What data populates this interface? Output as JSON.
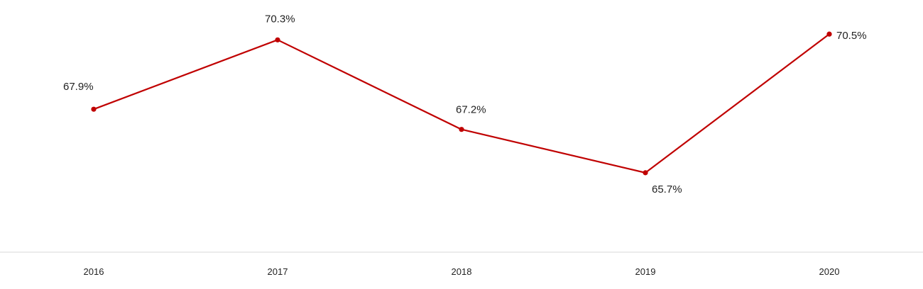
{
  "chart_data": {
    "type": "line",
    "title": "",
    "xlabel": "",
    "ylabel": "",
    "categories": [
      "2016",
      "2017",
      "2018",
      "2019",
      "2020"
    ],
    "series": [
      {
        "values": [
          67.9,
          70.3,
          67.2,
          65.7,
          70.5
        ],
        "labels": [
          "67.9%",
          "70.3%",
          "67.2%",
          "65.7%",
          "70.5%"
        ],
        "color": "#c00000"
      }
    ],
    "ylim": [
      62.95,
      70.7
    ],
    "grid": false,
    "legend": "none",
    "axis_color": "#d9d9d9"
  }
}
